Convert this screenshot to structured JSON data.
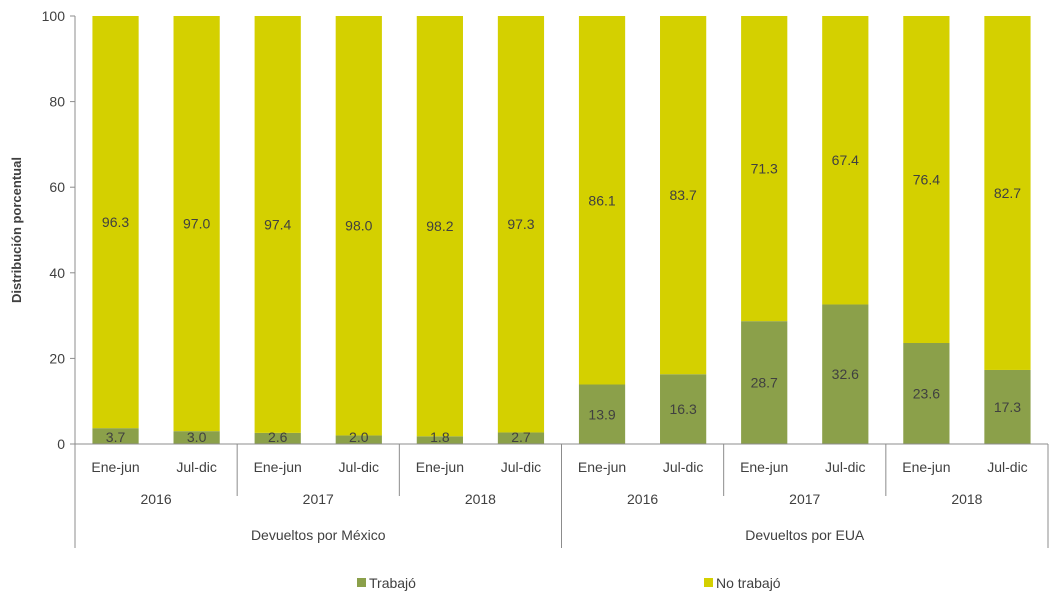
{
  "chart_data": {
    "type": "bar",
    "stacked": true,
    "ylabel": "Distribución porcentual",
    "ylim": [
      0,
      100
    ],
    "yticks": [
      0,
      20,
      40,
      60,
      80,
      100
    ],
    "grid": false,
    "legend_position": "bottom",
    "groups": [
      {
        "label": "Devueltos por México",
        "years": [
          {
            "label": "2016",
            "periods": [
              "Ene-jun",
              "Jul-dic"
            ]
          },
          {
            "label": "2017",
            "periods": [
              "Ene-jun",
              "Jul-dic"
            ]
          },
          {
            "label": "2018",
            "periods": [
              "Ene-jun",
              "Jul-dic"
            ]
          }
        ]
      },
      {
        "label": "Devueltos por EUA",
        "years": [
          {
            "label": "2016",
            "periods": [
              "Ene-jun",
              "Jul-dic"
            ]
          },
          {
            "label": "2017",
            "periods": [
              "Ene-jun",
              "Jul-dic"
            ]
          },
          {
            "label": "2018",
            "periods": [
              "Ene-jun",
              "Jul-dic"
            ]
          }
        ]
      }
    ],
    "series": [
      {
        "name": "Trabajó",
        "color": "#8ba04a",
        "values": [
          3.7,
          3.0,
          2.6,
          2.0,
          1.8,
          2.7,
          13.9,
          16.3,
          28.7,
          32.6,
          23.6,
          17.3
        ],
        "labels": [
          "3.7",
          "3.0",
          "2.6",
          "2.0",
          "1.8",
          "2.7",
          "13.9",
          "16.3",
          "28.7",
          "32.6",
          "23.6",
          "17.3"
        ]
      },
      {
        "name": "No trabajó",
        "color": "#d4d000",
        "values": [
          96.3,
          97.0,
          97.4,
          98.0,
          98.2,
          97.3,
          86.1,
          83.7,
          71.3,
          67.4,
          76.4,
          82.7
        ],
        "labels": [
          "96.3",
          "97.0",
          "97.4",
          "98.0",
          "98.2",
          "97.3",
          "86.1",
          "83.7",
          "71.3",
          "67.4",
          "76.4",
          "82.7"
        ]
      }
    ]
  }
}
